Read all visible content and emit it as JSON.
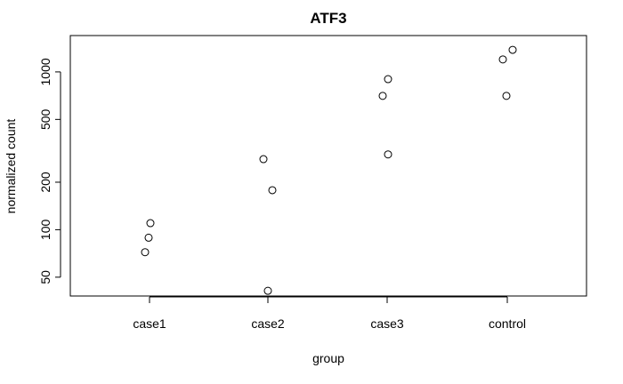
{
  "chart_data": {
    "type": "scatter",
    "title": "ATF3",
    "xlabel": "group",
    "ylabel": "normalized count",
    "y_scale": "log",
    "ylim": [
      38,
      1700
    ],
    "y_ticks": [
      50,
      100,
      200,
      500,
      1000
    ],
    "categories": [
      "case1",
      "case2",
      "case3",
      "control"
    ],
    "points": [
      {
        "group": "case1",
        "y": 110
      },
      {
        "group": "case1",
        "y": 89
      },
      {
        "group": "case1",
        "y": 72
      },
      {
        "group": "case2",
        "y": 280
      },
      {
        "group": "case2",
        "y": 178
      },
      {
        "group": "case2",
        "y": 41
      },
      {
        "group": "case3",
        "y": 900
      },
      {
        "group": "case3",
        "y": 705
      },
      {
        "group": "case3",
        "y": 300
      },
      {
        "group": "control",
        "y": 1200
      },
      {
        "group": "control",
        "y": 1380
      },
      {
        "group": "control",
        "y": 705
      }
    ],
    "grid": false,
    "legend": "none"
  }
}
